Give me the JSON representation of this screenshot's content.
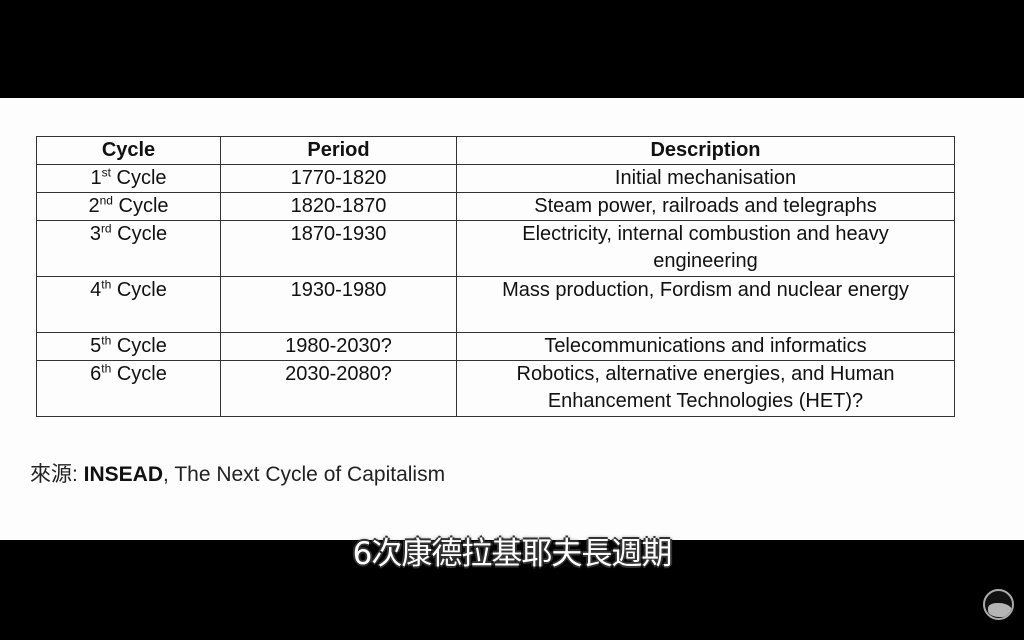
{
  "table": {
    "headers": [
      "Cycle",
      "Period",
      "Description"
    ],
    "rows": [
      {
        "num": "1",
        "sup": "st",
        "cycle": " Cycle",
        "period": "1770-1820",
        "desc": "Initial mechanisation"
      },
      {
        "num": "2",
        "sup": "nd",
        "cycle": " Cycle",
        "period": "1820-1870",
        "desc": "Steam power, railroads and telegraphs"
      },
      {
        "num": "3",
        "sup": "rd",
        "cycle": " Cycle",
        "period": "1870-1930",
        "desc": "Electricity, internal combustion and heavy engineering"
      },
      {
        "num": "4",
        "sup": "th",
        "cycle": " Cycle",
        "period": "1930-1980",
        "desc": "Mass production, Fordism and nuclear energy"
      },
      {
        "num": "5",
        "sup": "th",
        "cycle": " Cycle",
        "period": "1980-2030?",
        "desc": "Telecommunications and informatics"
      },
      {
        "num": "6",
        "sup": "th",
        "cycle": " Cycle",
        "period": "2030-2080?",
        "desc": "Robotics, alternative energies, and Human Enhancement Technologies (HET)?"
      }
    ]
  },
  "source": {
    "prefix": "來源: ",
    "org": "INSEAD",
    "title": ", The Next Cycle of Capitalism"
  },
  "subtitle": "6次康德拉基耶夫長週期",
  "logo_icon": "channel-logo-icon"
}
